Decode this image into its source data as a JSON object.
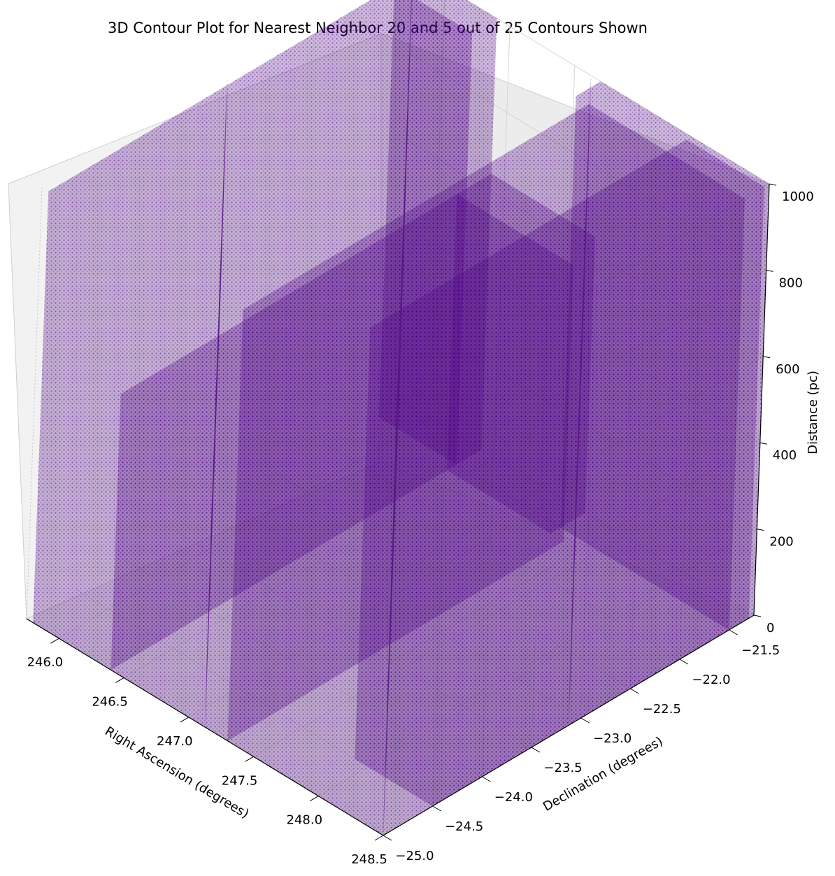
{
  "chart_data": {
    "type": "scatter",
    "projection": "3d",
    "title": "3D Contour Plot for Nearest Neighbor 20 and 5 out of 25 Contours Shown",
    "xlabel": "Right Ascension (degrees)",
    "ylabel": "Declination (degrees)",
    "zlabel": "Distance (pc)",
    "xlim": [
      245.75,
      248.5
    ],
    "ylim": [
      -25.0,
      -21.25
    ],
    "zlim": [
      0,
      1000
    ],
    "x_ticks": [
      "246.0",
      "246.5",
      "247.0",
      "247.5",
      "248.0",
      "248.5"
    ],
    "y_ticks": [
      "−25.0",
      "−24.5",
      "−24.0",
      "−23.5",
      "−23.0",
      "−22.5",
      "−22.0",
      "−21.5"
    ],
    "z_ticks": [
      "0",
      "200",
      "400",
      "600",
      "800",
      "1000"
    ],
    "grid": true,
    "pane_color": "#f2f2f2",
    "marker_color": "#4b0082",
    "series": [
      {
        "contours_shown": 5,
        "contours_total": 25,
        "point_density": "dense voxel grid filling most of the volume",
        "columns": [
          {
            "ra": [
              245.8,
              246.4
            ],
            "dec": [
              -21.5,
              -21.25
            ],
            "z": [
              0,
              1000
            ]
          },
          {
            "ra": [
              246.4,
              247.2
            ],
            "dec": [
              -21.6,
              -21.25
            ],
            "z": [
              0,
              640
            ]
          },
          {
            "ra": [
              247.2,
              248.5
            ],
            "dec": [
              -21.5,
              -21.25
            ],
            "z": [
              0,
              1000
            ]
          },
          {
            "ra": [
              245.8,
              246.4
            ],
            "dec": [
              -25.0,
              -21.5
            ],
            "z": [
              0,
              1000
            ]
          },
          {
            "ra": [
              246.4,
              247.3
            ],
            "dec": [
              -25.0,
              -21.6
            ],
            "z": [
              0,
              640
            ]
          },
          {
            "ra": [
              247.3,
              248.5
            ],
            "dec": [
              -25.0,
              -21.5
            ],
            "z": [
              0,
              1000
            ]
          },
          {
            "ra": [
              247.9,
              248.5
            ],
            "dec": [
              -24.5,
              -21.3
            ],
            "z": [
              0,
              1000
            ]
          }
        ]
      }
    ]
  }
}
